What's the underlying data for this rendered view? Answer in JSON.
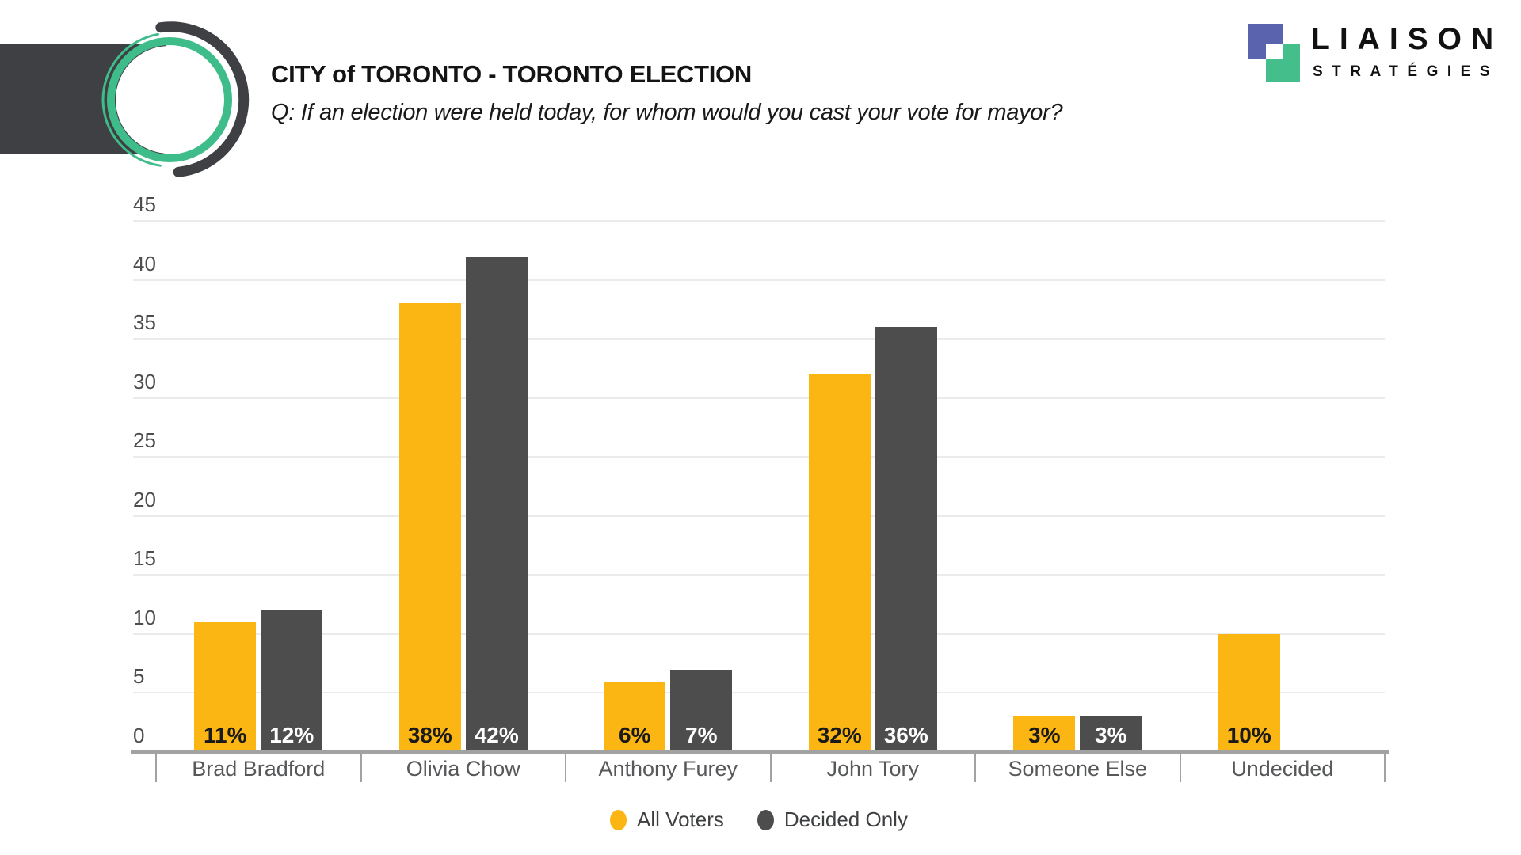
{
  "header": {
    "title": "CITY of TORONTO - TORONTO ELECTION",
    "subtitle": "Q: If an election were held today, for whom would you cast your vote for mayor?"
  },
  "brand": {
    "wordmark": "LIAISON",
    "tagline": "STRATÉGIES",
    "square_blue": "#5A63AE",
    "square_green": "#44BE8B"
  },
  "logo_colors": {
    "ring_green": "#3EBD8B",
    "arc_dark": "#3F4043"
  },
  "chart_data": {
    "type": "bar",
    "title": "CITY of TORONTO - TORONTO ELECTION",
    "categories": [
      "Brad Bradford",
      "Olivia Chow",
      "Anthony Furey",
      "John Tory",
      "Someone Else",
      "Undecided"
    ],
    "series": [
      {
        "name": "All Voters",
        "color": "#FBB614",
        "value_label_color": "#1A1A1A",
        "values": [
          11,
          38,
          6,
          32,
          3,
          10
        ],
        "value_labels": [
          "11%",
          "38%",
          "6%",
          "32%",
          "3%",
          "10%"
        ]
      },
      {
        "name": "Decided Only",
        "color": "#4D4D4E",
        "value_label_color": "#FFFFFF",
        "values": [
          12,
          42,
          7,
          36,
          3,
          null
        ],
        "value_labels": [
          "12%",
          "42%",
          "7%",
          "36%",
          "3%",
          null
        ]
      }
    ],
    "ylim": [
      0,
      45
    ],
    "yticks": [
      0,
      5,
      10,
      15,
      20,
      25,
      30,
      35,
      40,
      45
    ],
    "grid": true,
    "legend_position": "bottom",
    "xlabel": "",
    "ylabel": ""
  }
}
